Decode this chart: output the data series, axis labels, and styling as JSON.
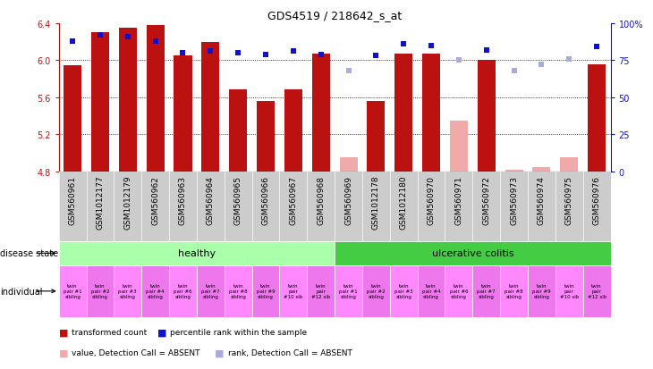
{
  "title": "GDS4519 / 218642_s_at",
  "samples": [
    "GSM560961",
    "GSM1012177",
    "GSM1012179",
    "GSM560962",
    "GSM560963",
    "GSM560964",
    "GSM560965",
    "GSM560966",
    "GSM560967",
    "GSM560968",
    "GSM560969",
    "GSM1012178",
    "GSM1012180",
    "GSM560970",
    "GSM560971",
    "GSM560972",
    "GSM560973",
    "GSM560974",
    "GSM560975",
    "GSM560976"
  ],
  "bar_values": [
    5.95,
    6.3,
    6.35,
    6.38,
    6.05,
    6.2,
    5.69,
    5.56,
    5.69,
    6.07,
    4.95,
    5.56,
    6.07,
    6.07,
    5.35,
    6.0,
    4.82,
    4.85,
    4.95,
    5.96
  ],
  "bar_absent": [
    false,
    false,
    false,
    false,
    false,
    false,
    false,
    false,
    false,
    false,
    true,
    false,
    false,
    false,
    true,
    false,
    true,
    true,
    true,
    false
  ],
  "percentile_values": [
    88,
    92,
    91,
    88,
    80,
    81,
    80,
    79,
    81,
    79,
    68,
    78,
    86,
    85,
    75,
    82,
    68,
    72,
    76,
    84
  ],
  "percentile_absent": [
    false,
    false,
    false,
    false,
    false,
    false,
    false,
    false,
    false,
    false,
    true,
    false,
    false,
    false,
    true,
    false,
    true,
    true,
    true,
    false
  ],
  "ylim_left": [
    4.8,
    6.4
  ],
  "ylim_right": [
    0,
    100
  ],
  "yticks_left": [
    4.8,
    5.2,
    5.6,
    6.0,
    6.4
  ],
  "yticks_right": [
    0,
    25,
    50,
    75,
    100
  ],
  "ytick_labels_right": [
    "0",
    "25",
    "50",
    "75",
    "100%"
  ],
  "bar_color_normal": "#bb1111",
  "bar_color_absent": "#f0aaaa",
  "percentile_color_normal": "#1111cc",
  "percentile_color_absent": "#aaaadd",
  "healthy_count": 10,
  "disease_state_healthy": "healthy",
  "disease_state_uc": "ulcerative colitis",
  "healthy_color": "#aaffaa",
  "uc_color": "#44cc44",
  "individual_color_even": "#ff88ff",
  "individual_color_odd": "#ee77ee",
  "individual_labels": [
    "twin\npair #1\nsibling",
    "twin\npair #2\nsibling",
    "twin\npair #3\nsibling",
    "twin\npair #4\nsibling",
    "twin\npair #6\nsibling",
    "twin\npair #7\nsibling",
    "twin\npair #8\nsibling",
    "twin\npair #9\nsibling",
    "twin\npair\n#10 sib",
    "twin\npair\n#12 sib",
    "twin\npair #1\nsibling",
    "twin\npair #2\nsibling",
    "twin\npair #3\nsibling",
    "twin\npair #4\nsibling",
    "twin\npair #6\nsibling",
    "twin\npair #7\nsibling",
    "twin\npair #8\nsibling",
    "twin\npair #9\nsibling",
    "twin\npair\n#10 sib",
    "twin\npair\n#12 sib"
  ],
  "background_color": "#ffffff",
  "sample_name_bg": "#cccccc",
  "label_fontsize": 6.5,
  "tick_fontsize": 7,
  "legend_items": [
    {
      "color": "#bb1111",
      "label": "transformed count"
    },
    {
      "color": "#1111cc",
      "label": "percentile rank within the sample"
    },
    {
      "color": "#f0aaaa",
      "label": "value, Detection Call = ABSENT"
    },
    {
      "color": "#aaaadd",
      "label": "rank, Detection Call = ABSENT"
    }
  ]
}
